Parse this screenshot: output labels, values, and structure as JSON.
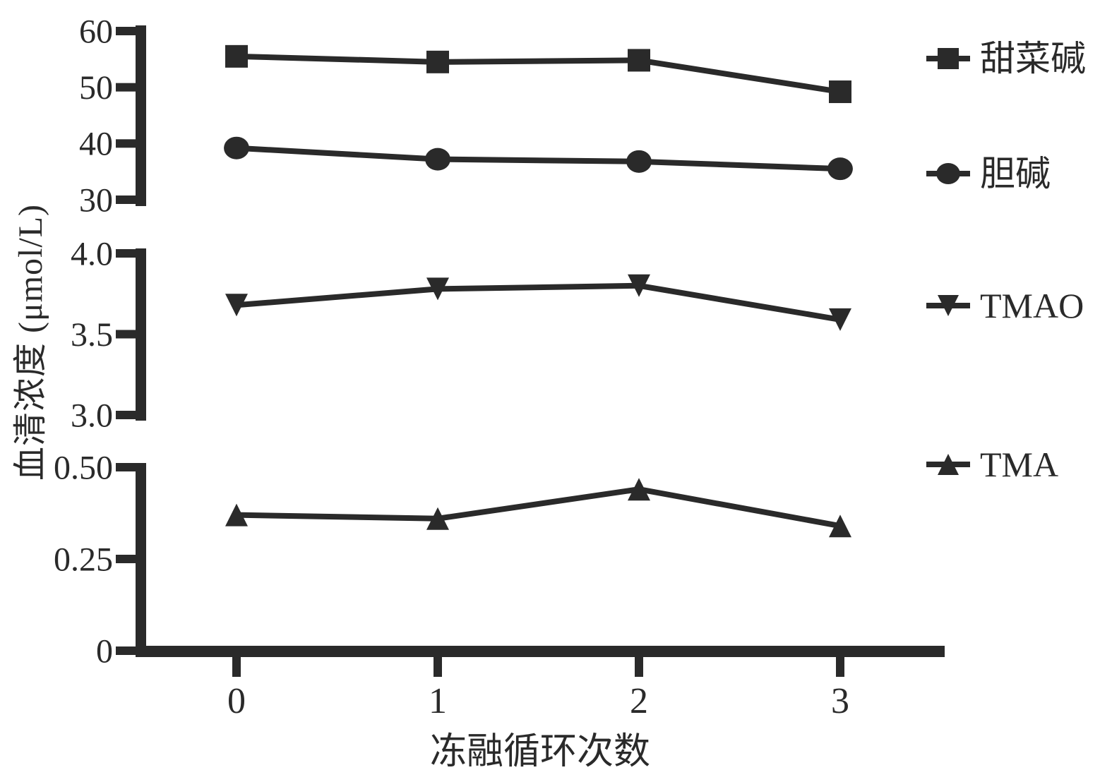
{
  "figure": {
    "title": "",
    "ylabel": "血清浓度 (μmol/L)",
    "xlabel": "冻融循环次数"
  },
  "chart_data": {
    "type": "line",
    "title": "",
    "xlabel": "冻融循环次数",
    "ylabel": "血清浓度 (μmol/L)",
    "x": [
      0,
      1,
      2,
      3
    ],
    "x_tick_labels": [
      "0",
      "1",
      "2",
      "3"
    ],
    "grid": false,
    "legend_position": "right",
    "color": "#2a2a2a",
    "axis_breaks": [
      {
        "range": [
          30,
          60
        ],
        "tick_values": [
          60,
          50,
          40,
          30
        ],
        "tick_labels": [
          "60",
          "50",
          "40",
          "30"
        ]
      },
      {
        "range": [
          3.0,
          4.0
        ],
        "tick_values": [
          4.0,
          3.5,
          3.0
        ],
        "tick_labels": [
          "4.0",
          "3.5",
          "3.0"
        ]
      },
      {
        "range": [
          0,
          0.5
        ],
        "tick_values": [
          0.5,
          0.25,
          0
        ],
        "tick_labels": [
          "0.50",
          "0.25",
          "0"
        ]
      }
    ],
    "series": [
      {
        "id": "tiancaijian",
        "name": "甜菜碱",
        "marker": "square",
        "segment": 0,
        "values": [
          55.5,
          54.5,
          54.8,
          49.2
        ]
      },
      {
        "id": "danjian",
        "name": "胆碱",
        "marker": "circle",
        "segment": 0,
        "values": [
          39.2,
          37.2,
          36.8,
          35.5
        ]
      },
      {
        "id": "tmao",
        "name": "TMAO",
        "marker": "triangle-down",
        "segment": 1,
        "values": [
          3.68,
          3.78,
          3.8,
          3.59
        ]
      },
      {
        "id": "tma",
        "name": "TMA",
        "marker": "triangle-up",
        "segment": 2,
        "values": [
          0.37,
          0.36,
          0.44,
          0.34
        ]
      }
    ]
  }
}
